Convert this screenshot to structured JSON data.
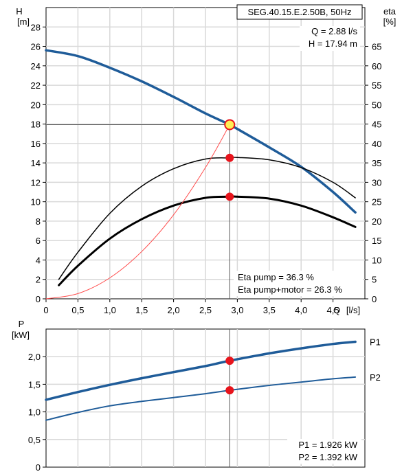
{
  "chart_data": [
    {
      "type": "line",
      "model_label": "SEG.40.15.E.2.50B, 50Hz",
      "readout": [
        "Q = 2.88 l/s",
        "H = 17.94 m"
      ],
      "eta_readout": [
        "Eta pump = 36.3 %",
        "Eta pump+motor = 26.3 %"
      ],
      "ylabel_left": [
        "H",
        "[m]"
      ],
      "ylabel_right": [
        "eta",
        "[%]"
      ],
      "xlabel": [
        "Q",
        "[l/s]"
      ],
      "xlim": [
        0,
        5
      ],
      "ylim_left": [
        0,
        30
      ],
      "ylim_right": [
        0,
        75
      ],
      "x_ticks": [
        {
          "v": 0,
          "t": "0"
        },
        {
          "v": 0.5,
          "t": "0,5"
        },
        {
          "v": 1,
          "t": "1,0"
        },
        {
          "v": 1.5,
          "t": "1,5"
        },
        {
          "v": 2,
          "t": "2,0"
        },
        {
          "v": 2.5,
          "t": "2,5"
        },
        {
          "v": 3,
          "t": "3,0"
        },
        {
          "v": 3.5,
          "t": "3,5"
        },
        {
          "v": 4,
          "t": "4,0"
        },
        {
          "v": 4.5,
          "t": "4,5"
        }
      ],
      "left_ticks": [
        {
          "v": 0,
          "t": "0"
        },
        {
          "v": 2,
          "t": "2"
        },
        {
          "v": 4,
          "t": "4"
        },
        {
          "v": 6,
          "t": "6"
        },
        {
          "v": 8,
          "t": "8"
        },
        {
          "v": 10,
          "t": "10"
        },
        {
          "v": 12,
          "t": "12"
        },
        {
          "v": 14,
          "t": "14"
        },
        {
          "v": 16,
          "t": "16"
        },
        {
          "v": 18,
          "t": "18"
        },
        {
          "v": 20,
          "t": "20"
        },
        {
          "v": 22,
          "t": "22"
        },
        {
          "v": 24,
          "t": "24"
        },
        {
          "v": 26,
          "t": "26"
        },
        {
          "v": 28,
          "t": "28"
        }
      ],
      "right_ticks": [
        {
          "v": 0,
          "t": "0"
        },
        {
          "v": 5,
          "t": "5"
        },
        {
          "v": 10,
          "t": "10"
        },
        {
          "v": 15,
          "t": "15"
        },
        {
          "v": 20,
          "t": "20"
        },
        {
          "v": 25,
          "t": "25"
        },
        {
          "v": 30,
          "t": "30"
        },
        {
          "v": 35,
          "t": "35"
        },
        {
          "v": 40,
          "t": "40"
        },
        {
          "v": 45,
          "t": "45"
        },
        {
          "v": 50,
          "t": "50"
        },
        {
          "v": 55,
          "t": "55"
        },
        {
          "v": 60,
          "t": "60"
        },
        {
          "v": 65,
          "t": "65"
        }
      ],
      "series": [
        {
          "key": "head",
          "axis": "left",
          "color": "#1f5c99",
          "x": [
            0,
            0.5,
            1.0,
            1.5,
            2.0,
            2.5,
            2.88,
            3.0,
            3.5,
            4.0,
            4.5,
            4.85
          ],
          "y": [
            25.6,
            25.0,
            23.8,
            22.4,
            20.8,
            19.1,
            17.94,
            17.5,
            15.6,
            13.6,
            11.0,
            8.9
          ]
        },
        {
          "key": "eta_pump",
          "axis": "right",
          "color": "#000000",
          "x": [
            0.2,
            0.5,
            1.0,
            1.5,
            2.0,
            2.5,
            2.88,
            3.0,
            3.5,
            4.0,
            4.5,
            4.85
          ],
          "y": [
            5.0,
            12.0,
            22.0,
            29.0,
            33.5,
            36.0,
            36.3,
            36.4,
            35.8,
            33.8,
            30.0,
            26.0
          ]
        },
        {
          "key": "eta_total",
          "axis": "right",
          "color": "#000000",
          "x": [
            0.2,
            0.5,
            1.0,
            1.5,
            2.0,
            2.5,
            2.88,
            3.0,
            3.5,
            4.0,
            4.5,
            4.85
          ],
          "y": [
            3.5,
            8.5,
            15.5,
            20.5,
            24.0,
            26.0,
            26.3,
            26.3,
            25.8,
            24.0,
            21.0,
            18.5
          ]
        },
        {
          "key": "system_curve",
          "axis": "left",
          "color": "#ff4d4d",
          "x": [
            0,
            0.5,
            1.0,
            1.5,
            2.0,
            2.5,
            2.88
          ],
          "y": [
            0,
            0.54,
            2.16,
            4.87,
            8.65,
            13.52,
            17.94
          ]
        }
      ],
      "operating_point": {
        "x": 2.88,
        "head": 17.94,
        "eta_pump": 36.3,
        "eta_total": 26.3
      }
    },
    {
      "type": "line",
      "ylabel": [
        "P",
        "[kW]"
      ],
      "xlim": [
        0,
        5
      ],
      "ylim": [
        0,
        2.5
      ],
      "left_ticks": [
        {
          "v": 0,
          "t": "0"
        },
        {
          "v": 0.5,
          "t": "0,5"
        },
        {
          "v": 1.0,
          "t": "1,0"
        },
        {
          "v": 1.5,
          "t": "1,5"
        },
        {
          "v": 2.0,
          "t": "2,0"
        }
      ],
      "readout": [
        "P1 = 1.926 kW",
        "P2 = 1.392 kW"
      ],
      "series": [
        {
          "key": "p1",
          "name": "P1",
          "color": "#1f5c99",
          "x": [
            0,
            0.5,
            1.0,
            1.5,
            2.0,
            2.5,
            2.88,
            3.5,
            4.0,
            4.5,
            4.85
          ],
          "y": [
            1.22,
            1.36,
            1.49,
            1.61,
            1.72,
            1.83,
            1.926,
            2.06,
            2.15,
            2.23,
            2.27
          ]
        },
        {
          "key": "p2",
          "name": "P2",
          "color": "#1f5c99",
          "x": [
            0,
            0.5,
            1.0,
            1.5,
            2.0,
            2.5,
            2.88,
            3.5,
            4.0,
            4.5,
            4.85
          ],
          "y": [
            0.85,
            0.99,
            1.11,
            1.19,
            1.26,
            1.33,
            1.392,
            1.48,
            1.54,
            1.6,
            1.63
          ]
        }
      ],
      "operating_point": {
        "x": 2.88,
        "p1": 1.926,
        "p2": 1.392
      }
    }
  ]
}
